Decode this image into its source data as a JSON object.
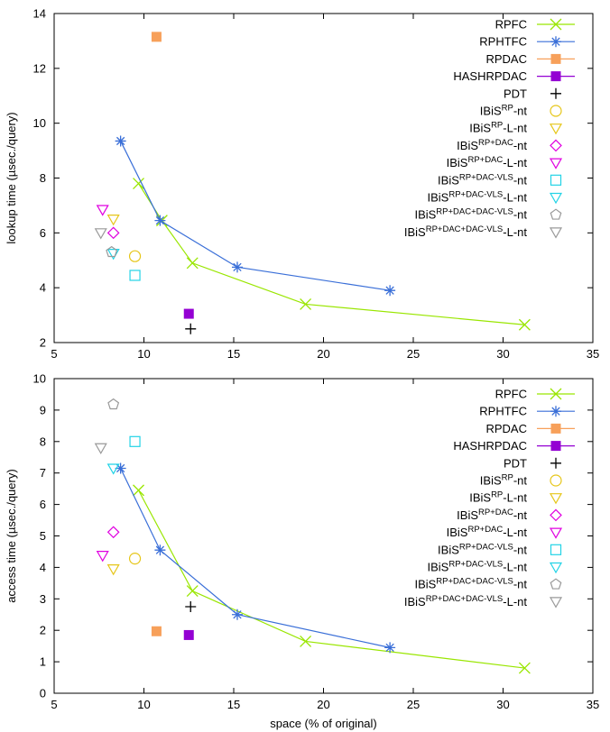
{
  "chart_data": [
    {
      "type": "scatter",
      "title": "",
      "xlabel": "",
      "ylabel": "lookup time (µsec./query)",
      "xlim": [
        5,
        35
      ],
      "ylim": [
        2,
        14
      ],
      "xticks": [
        5,
        10,
        15,
        20,
        25,
        30,
        35
      ],
      "yticks": [
        2,
        4,
        6,
        8,
        10,
        12,
        14
      ],
      "grid": false,
      "legend": "top-right",
      "series": [
        {
          "name": "RPFC",
          "sup": "",
          "suffix": "",
          "color": "#99e600",
          "marker": "x",
          "line": true,
          "x": [
            9.7,
            11.0,
            12.7,
            19.0,
            31.2
          ],
          "y": [
            7.8,
            6.45,
            4.9,
            3.4,
            2.65
          ]
        },
        {
          "name": "RPHTFC",
          "sup": "",
          "suffix": "",
          "color": "#3a6fd8",
          "marker": "star",
          "line": true,
          "x": [
            8.7,
            10.9,
            15.2,
            23.7
          ],
          "y": [
            9.35,
            6.45,
            4.75,
            3.9
          ]
        },
        {
          "name": "RPDAC",
          "sup": "",
          "suffix": "",
          "color": "#f7a05a",
          "marker": "square-filled",
          "line": true,
          "x": [
            10.7
          ],
          "y": [
            13.15
          ]
        },
        {
          "name": "HASHRPDAC",
          "sup": "",
          "suffix": "",
          "color": "#9400d3",
          "marker": "square-filled",
          "line": true,
          "x": [
            12.5
          ],
          "y": [
            3.05
          ]
        },
        {
          "name": "PDT",
          "sup": "",
          "suffix": "",
          "color": "#000000",
          "marker": "plus",
          "line": false,
          "x": [
            12.6
          ],
          "y": [
            2.5
          ]
        },
        {
          "name": "IBiS",
          "sup": "RP",
          "suffix": "-nt",
          "color": "#e6c619",
          "marker": "circle",
          "line": false,
          "x": [
            9.5
          ],
          "y": [
            5.15
          ]
        },
        {
          "name": "IBiS",
          "sup": "RP",
          "suffix": "-L-nt",
          "color": "#e6c619",
          "marker": "tri-down",
          "line": false,
          "x": [
            8.3
          ],
          "y": [
            6.5
          ]
        },
        {
          "name": "IBiS",
          "sup": "RP+DAC",
          "suffix": "-nt",
          "color": "#e000e0",
          "marker": "diamond",
          "line": false,
          "x": [
            8.3
          ],
          "y": [
            6.0
          ]
        },
        {
          "name": "IBiS",
          "sup": "RP+DAC",
          "suffix": "-L-nt",
          "color": "#e000e0",
          "marker": "tri-down",
          "line": false,
          "x": [
            7.7
          ],
          "y": [
            6.85
          ]
        },
        {
          "name": "IBiS",
          "sup": "RP+DAC-VLS",
          "suffix": "-nt",
          "color": "#22d3e6",
          "marker": "square",
          "line": false,
          "x": [
            9.5
          ],
          "y": [
            4.45
          ]
        },
        {
          "name": "IBiS",
          "sup": "RP+DAC-VLS",
          "suffix": "-L-nt",
          "color": "#22d3e6",
          "marker": "tri-down",
          "line": false,
          "x": [
            8.3
          ],
          "y": [
            5.25
          ]
        },
        {
          "name": "IBiS",
          "sup": "RP+DAC+DAC-VLS",
          "suffix": "-nt",
          "color": "#999999",
          "marker": "pentagon",
          "line": false,
          "x": [
            8.2
          ],
          "y": [
            5.3
          ]
        },
        {
          "name": "IBiS",
          "sup": "RP+DAC+DAC-VLS",
          "suffix": "-L-nt",
          "color": "#999999",
          "marker": "tri-down",
          "line": false,
          "x": [
            7.6
          ],
          "y": [
            6.0
          ]
        }
      ]
    },
    {
      "type": "scatter",
      "title": "",
      "xlabel": "space (% of original)",
      "ylabel": "access time (µsec./query)",
      "xlim": [
        5,
        35
      ],
      "ylim": [
        0,
        10
      ],
      "xticks": [
        5,
        10,
        15,
        20,
        25,
        30,
        35
      ],
      "yticks": [
        0,
        1,
        2,
        3,
        4,
        5,
        6,
        7,
        8,
        9,
        10
      ],
      "grid": false,
      "legend": "top-right",
      "series": [
        {
          "name": "RPFC",
          "sup": "",
          "suffix": "",
          "color": "#99e600",
          "marker": "x",
          "line": true,
          "x": [
            9.7,
            12.7,
            19.0,
            31.2
          ],
          "y": [
            6.45,
            3.25,
            1.65,
            0.8
          ]
        },
        {
          "name": "RPHTFC",
          "sup": "",
          "suffix": "",
          "color": "#3a6fd8",
          "marker": "star",
          "line": true,
          "x": [
            8.7,
            10.9,
            15.2,
            23.7
          ],
          "y": [
            7.15,
            4.55,
            2.5,
            1.45
          ]
        },
        {
          "name": "RPDAC",
          "sup": "",
          "suffix": "",
          "color": "#f7a05a",
          "marker": "square-filled",
          "line": true,
          "x": [
            10.7
          ],
          "y": [
            1.97
          ]
        },
        {
          "name": "HASHRPDAC",
          "sup": "",
          "suffix": "",
          "color": "#9400d3",
          "marker": "square-filled",
          "line": true,
          "x": [
            12.5
          ],
          "y": [
            1.85
          ]
        },
        {
          "name": "PDT",
          "sup": "",
          "suffix": "",
          "color": "#000000",
          "marker": "plus",
          "line": false,
          "x": [
            12.6
          ],
          "y": [
            2.75
          ]
        },
        {
          "name": "IBiS",
          "sup": "RP",
          "suffix": "-nt",
          "color": "#e6c619",
          "marker": "circle",
          "line": false,
          "x": [
            9.5
          ],
          "y": [
            4.28
          ]
        },
        {
          "name": "IBiS",
          "sup": "RP",
          "suffix": "-L-nt",
          "color": "#e6c619",
          "marker": "tri-down",
          "line": false,
          "x": [
            8.3
          ],
          "y": [
            3.95
          ]
        },
        {
          "name": "IBiS",
          "sup": "RP+DAC",
          "suffix": "-nt",
          "color": "#e000e0",
          "marker": "diamond",
          "line": false,
          "x": [
            8.3
          ],
          "y": [
            5.12
          ]
        },
        {
          "name": "IBiS",
          "sup": "RP+DAC",
          "suffix": "-L-nt",
          "color": "#e000e0",
          "marker": "tri-down",
          "line": false,
          "x": [
            7.7
          ],
          "y": [
            4.38
          ]
        },
        {
          "name": "IBiS",
          "sup": "RP+DAC-VLS",
          "suffix": "-nt",
          "color": "#22d3e6",
          "marker": "square",
          "line": false,
          "x": [
            9.5
          ],
          "y": [
            8.0
          ]
        },
        {
          "name": "IBiS",
          "sup": "RP+DAC-VLS",
          "suffix": "-L-nt",
          "color": "#22d3e6",
          "marker": "tri-down",
          "line": false,
          "x": [
            8.3
          ],
          "y": [
            7.15
          ]
        },
        {
          "name": "IBiS",
          "sup": "RP+DAC+DAC-VLS",
          "suffix": "-nt",
          "color": "#999999",
          "marker": "pentagon",
          "line": false,
          "x": [
            8.3
          ],
          "y": [
            9.18
          ]
        },
        {
          "name": "IBiS",
          "sup": "RP+DAC+DAC-VLS",
          "suffix": "-L-nt",
          "color": "#999999",
          "marker": "tri-down",
          "line": false,
          "x": [
            7.6
          ],
          "y": [
            7.8
          ]
        }
      ]
    }
  ]
}
